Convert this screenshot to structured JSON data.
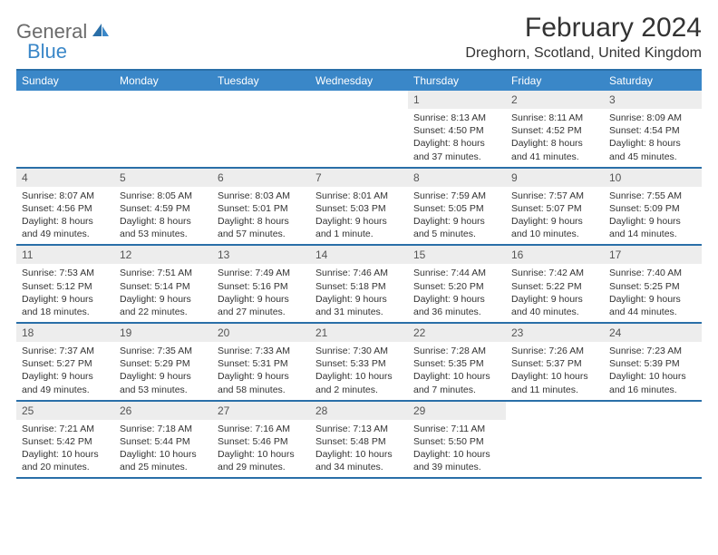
{
  "logo": {
    "part1": "General",
    "part2": "Blue"
  },
  "title": "February 2024",
  "location": "Dreghorn, Scotland, United Kingdom",
  "colors": {
    "header_bg": "#3a87c8",
    "border": "#2a6fa8",
    "daynum_bg": "#ededed",
    "text": "#333333"
  },
  "weekdays": [
    "Sunday",
    "Monday",
    "Tuesday",
    "Wednesday",
    "Thursday",
    "Friday",
    "Saturday"
  ],
  "weeks": [
    [
      null,
      null,
      null,
      null,
      {
        "n": "1",
        "sr": "8:13 AM",
        "ss": "4:50 PM",
        "dl": "8 hours and 37 minutes."
      },
      {
        "n": "2",
        "sr": "8:11 AM",
        "ss": "4:52 PM",
        "dl": "8 hours and 41 minutes."
      },
      {
        "n": "3",
        "sr": "8:09 AM",
        "ss": "4:54 PM",
        "dl": "8 hours and 45 minutes."
      }
    ],
    [
      {
        "n": "4",
        "sr": "8:07 AM",
        "ss": "4:56 PM",
        "dl": "8 hours and 49 minutes."
      },
      {
        "n": "5",
        "sr": "8:05 AM",
        "ss": "4:59 PM",
        "dl": "8 hours and 53 minutes."
      },
      {
        "n": "6",
        "sr": "8:03 AM",
        "ss": "5:01 PM",
        "dl": "8 hours and 57 minutes."
      },
      {
        "n": "7",
        "sr": "8:01 AM",
        "ss": "5:03 PM",
        "dl": "9 hours and 1 minute."
      },
      {
        "n": "8",
        "sr": "7:59 AM",
        "ss": "5:05 PM",
        "dl": "9 hours and 5 minutes."
      },
      {
        "n": "9",
        "sr": "7:57 AM",
        "ss": "5:07 PM",
        "dl": "9 hours and 10 minutes."
      },
      {
        "n": "10",
        "sr": "7:55 AM",
        "ss": "5:09 PM",
        "dl": "9 hours and 14 minutes."
      }
    ],
    [
      {
        "n": "11",
        "sr": "7:53 AM",
        "ss": "5:12 PM",
        "dl": "9 hours and 18 minutes."
      },
      {
        "n": "12",
        "sr": "7:51 AM",
        "ss": "5:14 PM",
        "dl": "9 hours and 22 minutes."
      },
      {
        "n": "13",
        "sr": "7:49 AM",
        "ss": "5:16 PM",
        "dl": "9 hours and 27 minutes."
      },
      {
        "n": "14",
        "sr": "7:46 AM",
        "ss": "5:18 PM",
        "dl": "9 hours and 31 minutes."
      },
      {
        "n": "15",
        "sr": "7:44 AM",
        "ss": "5:20 PM",
        "dl": "9 hours and 36 minutes."
      },
      {
        "n": "16",
        "sr": "7:42 AM",
        "ss": "5:22 PM",
        "dl": "9 hours and 40 minutes."
      },
      {
        "n": "17",
        "sr": "7:40 AM",
        "ss": "5:25 PM",
        "dl": "9 hours and 44 minutes."
      }
    ],
    [
      {
        "n": "18",
        "sr": "7:37 AM",
        "ss": "5:27 PM",
        "dl": "9 hours and 49 minutes."
      },
      {
        "n": "19",
        "sr": "7:35 AM",
        "ss": "5:29 PM",
        "dl": "9 hours and 53 minutes."
      },
      {
        "n": "20",
        "sr": "7:33 AM",
        "ss": "5:31 PM",
        "dl": "9 hours and 58 minutes."
      },
      {
        "n": "21",
        "sr": "7:30 AM",
        "ss": "5:33 PM",
        "dl": "10 hours and 2 minutes."
      },
      {
        "n": "22",
        "sr": "7:28 AM",
        "ss": "5:35 PM",
        "dl": "10 hours and 7 minutes."
      },
      {
        "n": "23",
        "sr": "7:26 AM",
        "ss": "5:37 PM",
        "dl": "10 hours and 11 minutes."
      },
      {
        "n": "24",
        "sr": "7:23 AM",
        "ss": "5:39 PM",
        "dl": "10 hours and 16 minutes."
      }
    ],
    [
      {
        "n": "25",
        "sr": "7:21 AM",
        "ss": "5:42 PM",
        "dl": "10 hours and 20 minutes."
      },
      {
        "n": "26",
        "sr": "7:18 AM",
        "ss": "5:44 PM",
        "dl": "10 hours and 25 minutes."
      },
      {
        "n": "27",
        "sr": "7:16 AM",
        "ss": "5:46 PM",
        "dl": "10 hours and 29 minutes."
      },
      {
        "n": "28",
        "sr": "7:13 AM",
        "ss": "5:48 PM",
        "dl": "10 hours and 34 minutes."
      },
      {
        "n": "29",
        "sr": "7:11 AM",
        "ss": "5:50 PM",
        "dl": "10 hours and 39 minutes."
      },
      null,
      null
    ]
  ],
  "labels": {
    "sunrise": "Sunrise:",
    "sunset": "Sunset:",
    "daylight": "Daylight:"
  }
}
